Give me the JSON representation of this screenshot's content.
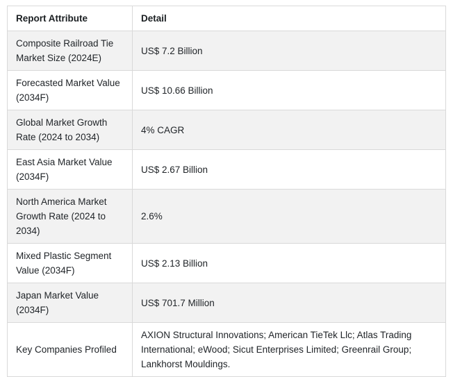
{
  "table": {
    "headers": {
      "attribute": "Report Attribute",
      "detail": "Detail"
    },
    "rows": [
      {
        "attribute": "Composite Railroad Tie Market Size (2024E)",
        "detail": "US$ 7.2 Billion"
      },
      {
        "attribute": "Forecasted Market Value (2034F)",
        "detail": "US$ 10.66 Billion"
      },
      {
        "attribute": "Global Market Growth Rate (2024 to 2034)",
        "detail": "4% CAGR"
      },
      {
        "attribute": "East Asia Market Value (2034F)",
        "detail": "US$ 2.67 Billion"
      },
      {
        "attribute": "North America Market Growth Rate (2024 to 2034)",
        "detail": "2.6%"
      },
      {
        "attribute": "Mixed Plastic Segment Value (2034F)",
        "detail": "US$ 2.13 Billion"
      },
      {
        "attribute": "Japan Market Value (2034F)",
        "detail": "US$ 701.7 Million"
      },
      {
        "attribute": "Key Companies Profiled",
        "detail": "AXION Structural Innovations; American TieTek Llc; Atlas Trading International; eWood; Sicut Enterprises Limited; Greenrail Group; Lankhorst Mouldings."
      }
    ],
    "colors": {
      "row_alt_bg": "#f2f2f2",
      "row_bg": "#ffffff",
      "border": "#d9d9d9",
      "text": "#212529"
    }
  }
}
